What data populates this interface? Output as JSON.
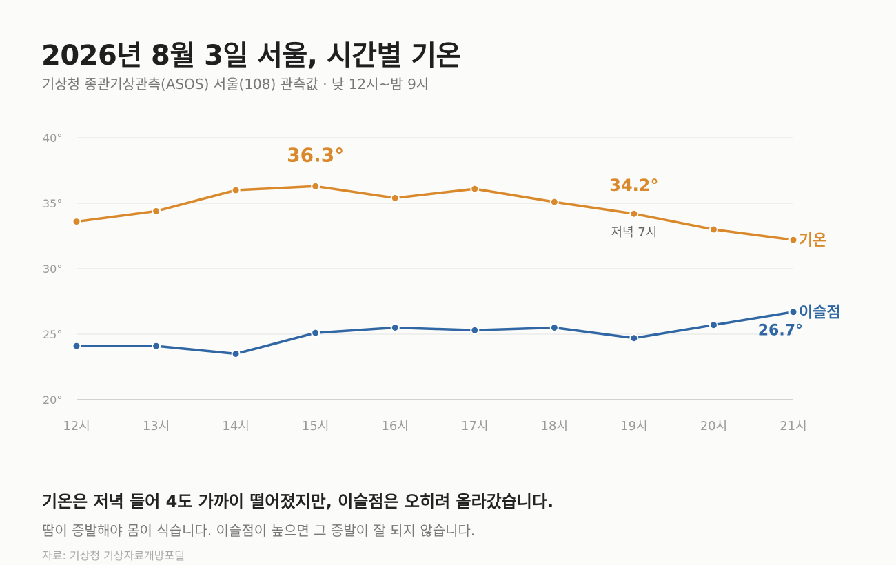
{
  "title": "2026년 8월 3일 서울, 시간별 기온",
  "subtitle": "기상청 종관기상관측(ASOS) 서울(108) 관측값 · 낮 12시~밤 9시",
  "headline": "기온은 저녁 들어 4도 가까이 떨어졌지만, 이슬점은 오히려 올라갔습니다.",
  "body_text": "땀이 증발해야 몸이 식습니다. 이슬점이 높으면 그 증발이 잘 되지 않습니다.",
  "source": "자료: 기상청 기상자료개방포털",
  "colors": {
    "temperature": "#d9892b",
    "dewpoint": "#2f66a3",
    "grid": "#e3e3e3",
    "axis": "#c4c4c4",
    "tick": "#9a9a9a"
  },
  "chart_data": {
    "type": "line",
    "x": [
      "12시",
      "13시",
      "14시",
      "15시",
      "16시",
      "17시",
      "18시",
      "19시",
      "20시",
      "21시"
    ],
    "ylim": [
      20,
      40
    ],
    "yticks": [
      20,
      25,
      30,
      35,
      40
    ],
    "ytick_labels": [
      "20°",
      "25°",
      "30°",
      "35°",
      "40°"
    ],
    "grid": true,
    "series": [
      {
        "name": "기온",
        "key": "temperature",
        "values": [
          33.6,
          34.4,
          36.0,
          36.3,
          35.4,
          36.1,
          35.1,
          34.2,
          33.0,
          32.2
        ]
      },
      {
        "name": "이슬점",
        "key": "dewpoint",
        "values": [
          24.1,
          24.1,
          23.5,
          25.1,
          25.5,
          25.3,
          25.5,
          24.7,
          25.7,
          26.7
        ]
      }
    ],
    "annotations": [
      {
        "series": "temperature",
        "index": 3,
        "label": "36.3°"
      },
      {
        "series": "temperature",
        "index": 7,
        "label": "34.2°",
        "note": "저녁 7시"
      },
      {
        "series": "dewpoint",
        "index": 9,
        "label": "26.7°"
      }
    ]
  }
}
